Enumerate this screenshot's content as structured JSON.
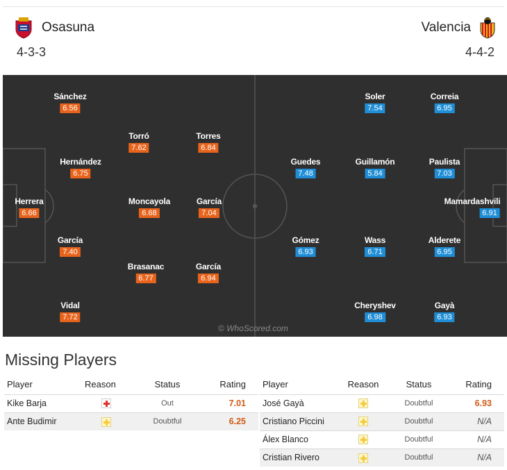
{
  "match": {
    "home": {
      "name": "Osasuna",
      "formation": "4-3-3"
    },
    "away": {
      "name": "Valencia",
      "formation": "4-4-2"
    }
  },
  "colors": {
    "home_rating": "#e8641c",
    "away_rating": "#1f8ed6",
    "pitch": "#2f2f2f"
  },
  "lineup": {
    "home": [
      {
        "name": "Sánchez",
        "rating": "6.56"
      },
      {
        "name": "Torró",
        "rating": "7.62"
      },
      {
        "name": "Torres",
        "rating": "6.84"
      },
      {
        "name": "Hernández",
        "rating": "6.75"
      },
      {
        "name": "Herrera",
        "rating": "6.66"
      },
      {
        "name": "Moncayola",
        "rating": "6.68"
      },
      {
        "name": "García",
        "rating": "7.04"
      },
      {
        "name": "García",
        "rating": "7.40"
      },
      {
        "name": "Brasanac",
        "rating": "6.77"
      },
      {
        "name": "García",
        "rating": "6.94"
      },
      {
        "name": "Vidal",
        "rating": "7.72"
      }
    ],
    "away": [
      {
        "name": "Soler",
        "rating": "7.54"
      },
      {
        "name": "Correia",
        "rating": "6.95"
      },
      {
        "name": "Guedes",
        "rating": "7.48"
      },
      {
        "name": "Guillamón",
        "rating": "5.84"
      },
      {
        "name": "Paulista",
        "rating": "7.03"
      },
      {
        "name": "Mamardashvili",
        "rating": "6.91"
      },
      {
        "name": "Gómez",
        "rating": "6.93"
      },
      {
        "name": "Wass",
        "rating": "6.71"
      },
      {
        "name": "Alderete",
        "rating": "6.95"
      },
      {
        "name": "Cheryshev",
        "rating": "6.98"
      },
      {
        "name": "Gayà",
        "rating": "6.93"
      }
    ]
  },
  "watermark": "© WhoScored.com",
  "missing": {
    "title": "Missing Players",
    "columns": {
      "player": "Player",
      "reason": "Reason",
      "status": "Status",
      "rating": "Rating"
    },
    "home": [
      {
        "player": "Kike Barja",
        "reason_icon": "injury-icon",
        "status": "Out",
        "rating": "7.01"
      },
      {
        "player": "Ante Budimir",
        "reason_icon": "doubtful-icon",
        "status": "Doubtful",
        "rating": "6.25"
      }
    ],
    "away": [
      {
        "player": "José Gayà",
        "reason_icon": "doubtful-icon",
        "status": "Doubtful",
        "rating": "6.93"
      },
      {
        "player": "Cristiano Piccini",
        "reason_icon": "doubtful-icon",
        "status": "Doubtful",
        "rating": "N/A"
      },
      {
        "player": "Álex Blanco",
        "reason_icon": "doubtful-icon",
        "status": "Doubtful",
        "rating": "N/A"
      },
      {
        "player": "Cristian Rivero",
        "reason_icon": "doubtful-icon",
        "status": "Doubtful",
        "rating": "N/A"
      }
    ]
  }
}
